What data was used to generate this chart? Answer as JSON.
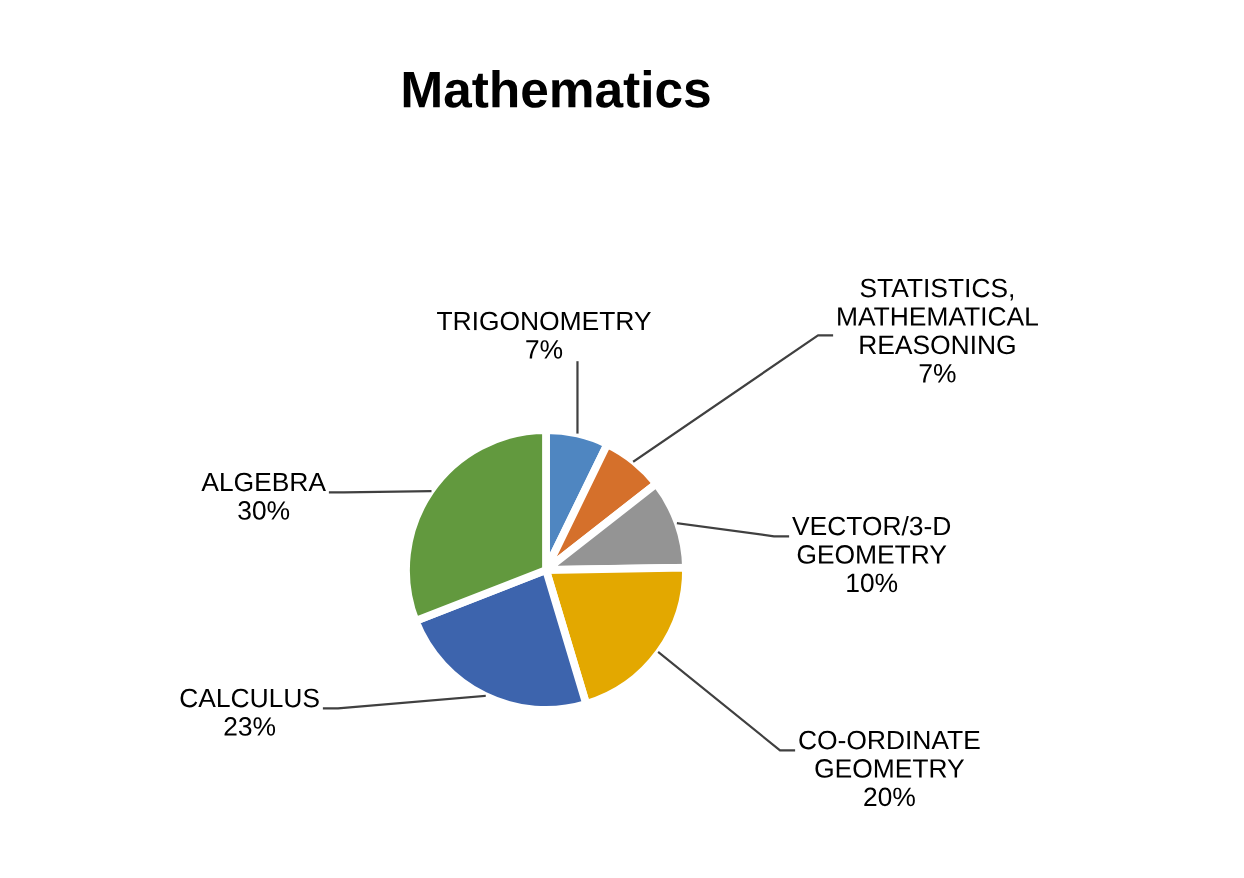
{
  "chart_data": {
    "type": "pie",
    "title": "Mathematics",
    "categories": [
      "TRIGONOMETRY",
      "STATISTICS,\nMATHEMATICAL\nREASONING",
      "VECTOR/3-D\nGEOMETRY",
      "CO-ORDINATE\nGEOMETRY",
      "CALCULUS",
      "ALGEBRA"
    ],
    "values": [
      7,
      7,
      10,
      20,
      23,
      30
    ],
    "colors": [
      "#4f86c1",
      "#d5702b",
      "#949494",
      "#e3a800",
      "#3d64ad",
      "#62993e"
    ],
    "value_labels": [
      "7%",
      "7%",
      "10%",
      "20%",
      "23%",
      "30%"
    ]
  }
}
